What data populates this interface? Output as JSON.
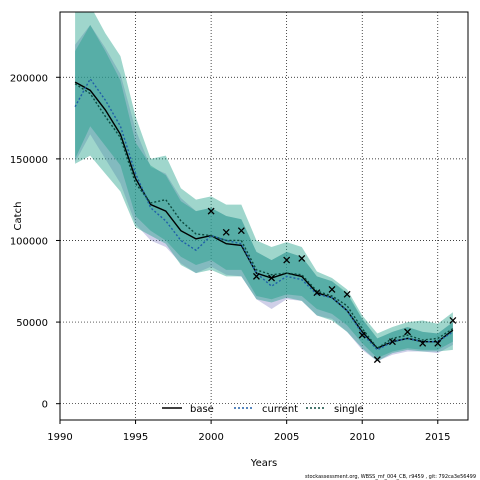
{
  "chart_data": {
    "type": "line",
    "xlabel": "Years",
    "ylabel": "Catch",
    "xlim": [
      1990,
      2017
    ],
    "ylim": [
      -10000,
      240000
    ],
    "x_ticks": [
      1990,
      1995,
      2000,
      2005,
      2010,
      2015
    ],
    "y_ticks": [
      0,
      50000,
      100000,
      150000,
      200000
    ],
    "grid": true,
    "legend_position": "bottom-center",
    "years": [
      1991,
      1992,
      1993,
      1994,
      1995,
      1996,
      1997,
      1998,
      1999,
      2000,
      2001,
      2002,
      2003,
      2004,
      2005,
      2006,
      2007,
      2008,
      2009,
      2010,
      2011,
      2012,
      2013,
      2014,
      2015,
      2016
    ],
    "series": [
      {
        "name": "base",
        "color": "#000000",
        "style": "solid",
        "values": [
          197000,
          192000,
          180000,
          165000,
          138000,
          122000,
          118000,
          106000,
          101000,
          103000,
          98000,
          97000,
          80000,
          77000,
          80000,
          78000,
          68000,
          65000,
          57000,
          44000,
          34000,
          38000,
          40000,
          38000,
          38000,
          45000
        ]
      },
      {
        "name": "current",
        "color": "#1f5fa8",
        "style": "dotted",
        "values": [
          182000,
          199000,
          186000,
          170000,
          141000,
          120000,
          112000,
          100000,
          94000,
          103000,
          100000,
          98000,
          80000,
          72000,
          78000,
          76000,
          67000,
          65000,
          57000,
          43000,
          33000,
          38000,
          40000,
          38000,
          38000,
          44000
        ]
      },
      {
        "name": "single",
        "color": "#0c4a3e",
        "style": "dotted",
        "values": [
          196000,
          190000,
          176000,
          163000,
          135000,
          123000,
          125000,
          112000,
          104000,
          103000,
          100000,
          100000,
          82000,
          79000,
          80000,
          79000,
          69000,
          66000,
          60000,
          46000,
          34000,
          40000,
          42000,
          39000,
          40000,
          46000
        ]
      }
    ],
    "bands": [
      {
        "series": "current",
        "color": "#8c8cc8",
        "lower": [
          148000,
          165000,
          150000,
          135000,
          110000,
          100000,
          96000,
          86000,
          80000,
          84000,
          79000,
          78000,
          64000,
          58000,
          64000,
          63000,
          54000,
          52000,
          44000,
          33000,
          26000,
          30000,
          32000,
          32000,
          31000,
          36000
        ],
        "upper": [
          220000,
          232000,
          218000,
          202000,
          168000,
          145000,
          141000,
          126000,
          118000,
          120000,
          115000,
          113000,
          93000,
          88000,
          93000,
          90000,
          78000,
          75000,
          67000,
          52000,
          40000,
          44000,
          47000,
          44000,
          43000,
          50000
        ]
      },
      {
        "series": "base",
        "color": "#1a9e85",
        "lower": [
          150000,
          170000,
          158000,
          146000,
          115000,
          106000,
          100000,
          90000,
          85000,
          88000,
          82000,
          82000,
          66000,
          64000,
          67000,
          66000,
          58000,
          55000,
          48000,
          37000,
          28000,
          32000,
          34000,
          33000,
          33000,
          38000
        ],
        "upper": [
          216000,
          232000,
          216000,
          198000,
          160000,
          146000,
          140000,
          124000,
          118000,
          120000,
          115000,
          113000,
          93000,
          88000,
          93000,
          90000,
          78000,
          75000,
          68000,
          52000,
          40000,
          44000,
          47000,
          44000,
          43000,
          50000
        ]
      },
      {
        "series": "single",
        "color": "#1a9e85",
        "lower": [
          147000,
          152000,
          141000,
          130000,
          108000,
          103000,
          98000,
          85000,
          80000,
          82000,
          78000,
          78000,
          64000,
          62000,
          65000,
          63000,
          54000,
          51000,
          44000,
          34000,
          26000,
          31000,
          33000,
          32000,
          32000,
          33000
        ],
        "upper": [
          246000,
          244000,
          227000,
          213000,
          176000,
          150000,
          152000,
          132000,
          125000,
          127000,
          122000,
          122000,
          100000,
          96000,
          99000,
          96000,
          81000,
          77000,
          70000,
          54000,
          43000,
          47000,
          50000,
          51000,
          49000,
          56000
        ]
      }
    ],
    "observations": {
      "marker": "x",
      "points": [
        [
          2000,
          118000
        ],
        [
          2001,
          105000
        ],
        [
          2002,
          106000
        ],
        [
          2003,
          78000
        ],
        [
          2004,
          77000
        ],
        [
          2005,
          88000
        ],
        [
          2006,
          89000
        ],
        [
          2007,
          68000
        ],
        [
          2008,
          70000
        ],
        [
          2009,
          67000
        ],
        [
          2010,
          42000
        ],
        [
          2011,
          27000
        ],
        [
          2012,
          38000
        ],
        [
          2013,
          44000
        ],
        [
          2014,
          37000
        ],
        [
          2015,
          37000
        ],
        [
          2016,
          51000
        ]
      ]
    }
  },
  "footnote": "stockassessment.org, WBSS_mf_004_CB, r9459 , git: 792ca3e56499"
}
